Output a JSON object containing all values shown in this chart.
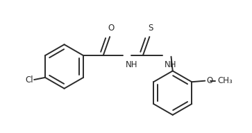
{
  "bg_color": "#ffffff",
  "line_color": "#2a2a2a",
  "line_width": 1.4,
  "font_size": 8.5,
  "fig_width": 3.63,
  "fig_height": 1.92,
  "dpi": 100,
  "xlim": [
    -0.5,
    10.5
  ],
  "ylim": [
    -3.8,
    2.2
  ]
}
